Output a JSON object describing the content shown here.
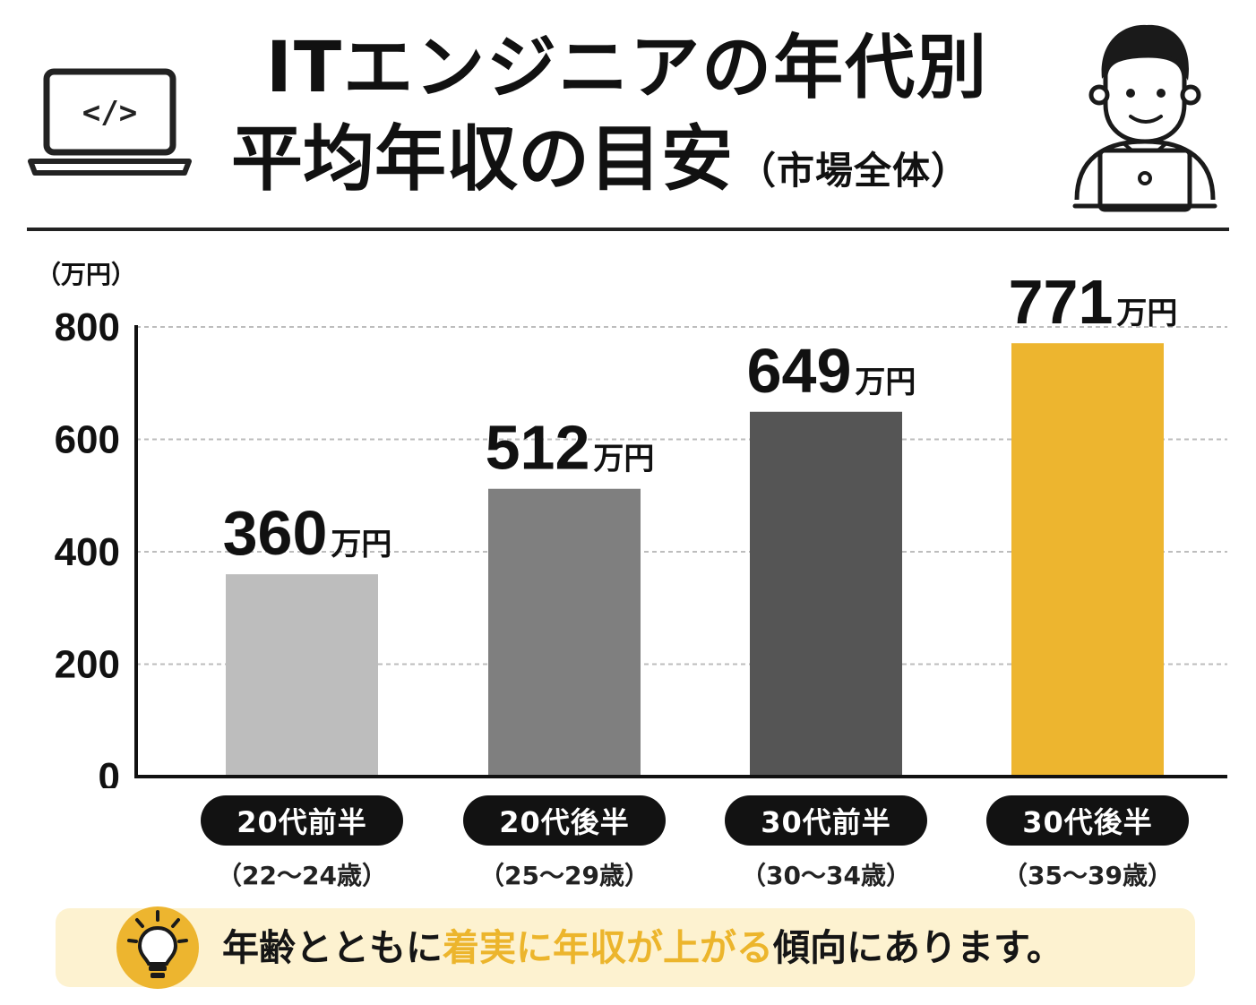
{
  "header": {
    "title_line1": "ITエンジニアの年代別",
    "title_line2": "平均年収の目安",
    "title_sub": "（市場全体）",
    "laptop_code_text": "</>"
  },
  "chart_data": {
    "type": "bar",
    "unit_label": "（万円）",
    "value_suffix": "万円",
    "categories": [
      "20代前半",
      "20代後半",
      "30代前半",
      "30代後半"
    ],
    "category_subtitles": [
      "（22〜24歳）",
      "（25〜29歳）",
      "（30〜34歳）",
      "（35〜39歳）"
    ],
    "values": [
      360,
      512,
      649,
      771
    ],
    "bar_colors": [
      "#bdbdbd",
      "#7f7f7f",
      "#555555",
      "#edb52f"
    ],
    "ylim": [
      0,
      800
    ],
    "yticks": [
      0,
      200,
      400,
      600,
      800
    ],
    "grid": true,
    "legend": "none"
  },
  "note": {
    "prefix": "年齢とともに",
    "highlight": "着実に年収が上がる",
    "suffix": "傾向にあります。",
    "highlight_color": "#ecb52c"
  }
}
